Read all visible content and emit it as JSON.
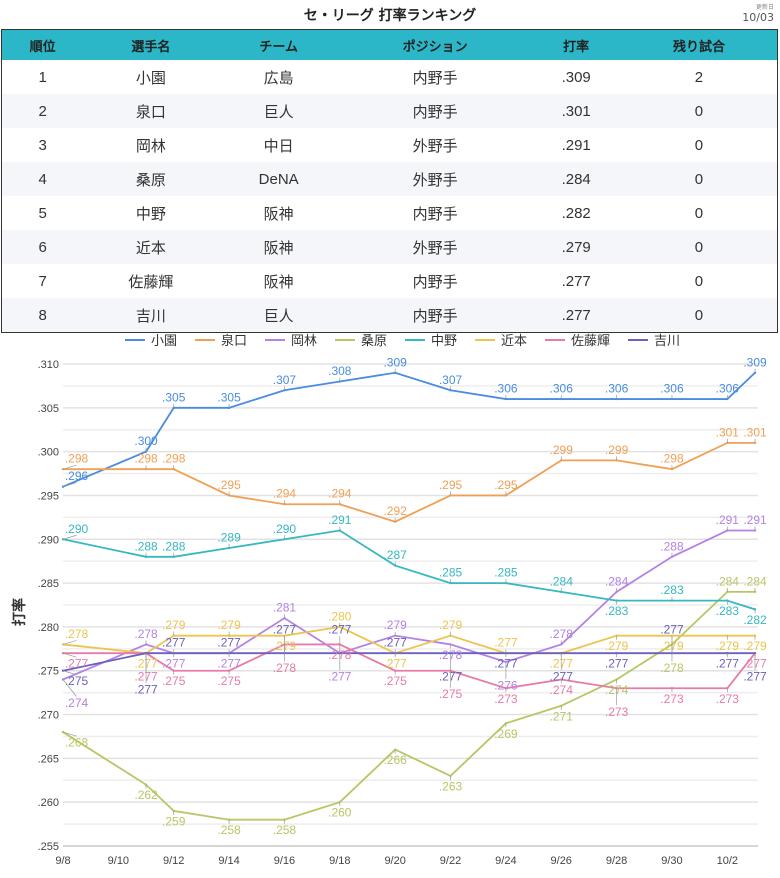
{
  "title": "セ・リーグ 打率ランキング",
  "updated": {
    "label": "更新日",
    "date": "10/03"
  },
  "table": {
    "headers": [
      "順位",
      "選手名",
      "チーム",
      "ポジション",
      "打率",
      "残り試合"
    ],
    "rows": [
      [
        "1",
        "小園",
        "広島",
        "内野手",
        ".309",
        "2"
      ],
      [
        "2",
        "泉口",
        "巨人",
        "内野手",
        ".301",
        "0"
      ],
      [
        "3",
        "岡林",
        "中日",
        "外野手",
        ".291",
        "0"
      ],
      [
        "4",
        "桑原",
        "DeNA",
        "外野手",
        ".284",
        "0"
      ],
      [
        "5",
        "中野",
        "阪神",
        "内野手",
        ".282",
        "0"
      ],
      [
        "6",
        "近本",
        "阪神",
        "外野手",
        ".279",
        "0"
      ],
      [
        "7",
        "佐藤輝",
        "阪神",
        "内野手",
        ".277",
        "0"
      ],
      [
        "8",
        "吉川",
        "巨人",
        "内野手",
        ".277",
        "0"
      ]
    ]
  },
  "chart_data": {
    "type": "line",
    "ylabel": "打率",
    "ylim": [
      0.255,
      0.31
    ],
    "yticks": [
      ".255",
      ".260",
      ".265",
      ".270",
      ".275",
      ".280",
      ".285",
      ".290",
      ".295",
      ".300",
      ".305",
      ".310"
    ],
    "xticks": [
      "9/8",
      "9/10",
      "9/12",
      "9/14",
      "9/16",
      "9/18",
      "9/20",
      "9/22",
      "9/24",
      "9/26",
      "9/28",
      "9/30",
      "10/2"
    ],
    "x": [
      "9/8",
      "9/11",
      "9/12",
      "9/14",
      "9/16",
      "9/18",
      "9/20",
      "9/22",
      "9/24",
      "9/26",
      "9/28",
      "9/30",
      "10/2",
      "10/3"
    ],
    "x_days": [
      0,
      3,
      4,
      6,
      8,
      10,
      12,
      14,
      16,
      18,
      20,
      22,
      24,
      25
    ],
    "legend": "top",
    "grid": true,
    "series": [
      {
        "name": "小園",
        "color": "#4a8ce0",
        "values": [
          0.296,
          0.3,
          0.305,
          0.305,
          0.307,
          0.308,
          0.309,
          0.307,
          0.306,
          0.306,
          0.306,
          0.306,
          0.306,
          0.309
        ]
      },
      {
        "name": "泉口",
        "color": "#f0a055",
        "values": [
          0.298,
          0.298,
          0.298,
          0.295,
          0.294,
          0.294,
          0.292,
          0.295,
          0.295,
          0.299,
          0.299,
          0.298,
          0.301,
          0.301
        ]
      },
      {
        "name": "岡林",
        "color": "#b482e6",
        "values": [
          0.274,
          0.278,
          0.277,
          0.277,
          0.281,
          0.277,
          0.279,
          0.278,
          0.276,
          0.278,
          0.284,
          0.288,
          0.291,
          0.291
        ]
      },
      {
        "name": "桑原",
        "color": "#b4c864",
        "values": [
          0.268,
          0.262,
          0.259,
          0.258,
          0.258,
          0.26,
          0.266,
          0.263,
          0.269,
          0.271,
          0.274,
          0.278,
          0.284,
          0.284
        ]
      },
      {
        "name": "中野",
        "color": "#35b8c0",
        "values": [
          0.29,
          0.288,
          0.288,
          0.289,
          0.29,
          0.291,
          0.287,
          0.285,
          0.285,
          0.284,
          0.283,
          0.283,
          0.283,
          0.282
        ]
      },
      {
        "name": "近本",
        "color": "#ecc44e",
        "values": [
          0.278,
          0.277,
          0.279,
          0.279,
          0.279,
          0.28,
          0.277,
          0.279,
          0.277,
          0.277,
          0.279,
          0.279,
          0.279,
          0.279
        ]
      },
      {
        "name": "佐藤輝",
        "color": "#e87aa8",
        "values": [
          0.277,
          0.277,
          0.275,
          0.275,
          0.278,
          0.278,
          0.275,
          0.275,
          0.273,
          0.274,
          0.273,
          0.273,
          0.273,
          0.277
        ]
      },
      {
        "name": "吉川",
        "color": "#6a60c0",
        "values": [
          0.275,
          0.277,
          0.277,
          0.277,
          0.277,
          0.277,
          0.277,
          0.277,
          0.277,
          0.277,
          0.277,
          0.277,
          0.277,
          0.277
        ]
      }
    ]
  }
}
